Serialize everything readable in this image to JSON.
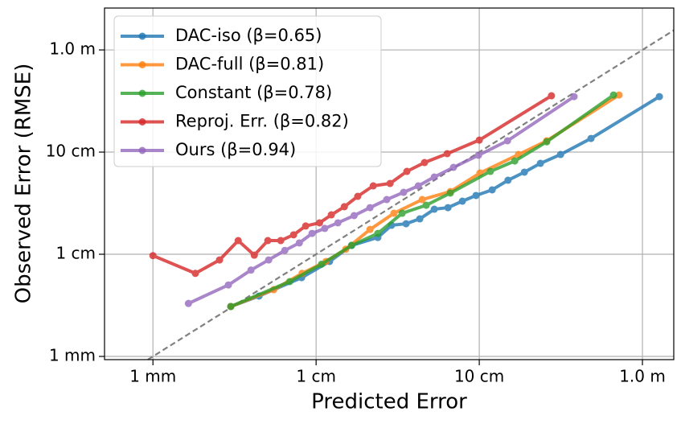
{
  "chart_data": {
    "type": "line",
    "xlabel": "Predicted Error",
    "ylabel": "Observed Error (RMSE)",
    "xscale": "log",
    "yscale": "log",
    "grid": true,
    "legend": "upper left",
    "xlim": [
      0.000505,
      1.556
    ],
    "ylim": [
      0.00093,
      2.57
    ],
    "xticks": [
      {
        "value": 0.001,
        "label": "1 mm"
      },
      {
        "value": 0.01,
        "label": "1 cm"
      },
      {
        "value": 0.1,
        "label": "10 cm"
      },
      {
        "value": 1,
        "label": "1.0 m"
      }
    ],
    "yticks": [
      {
        "value": 0.001,
        "label": "1 mm"
      },
      {
        "value": 0.01,
        "label": "1 cm"
      },
      {
        "value": 0.1,
        "label": "10 cm"
      },
      {
        "value": 1,
        "label": "1.0 m"
      }
    ],
    "series": [
      {
        "name": "DAC-iso (β=0.65)",
        "color": "#1f77b4",
        "x": [
          0.003,
          0.00447,
          0.00815,
          0.0121,
          0.0165,
          0.0239,
          0.029,
          0.0356,
          0.0432,
          0.053,
          0.0643,
          0.0788,
          0.0955,
          0.12,
          0.15,
          0.189,
          0.237,
          0.315,
          0.484,
          1.27
        ],
        "values": [
          0.00308,
          0.0039,
          0.0059,
          0.0085,
          0.0122,
          0.0146,
          0.0192,
          0.0199,
          0.0222,
          0.0276,
          0.0286,
          0.0331,
          0.0376,
          0.0427,
          0.053,
          0.0636,
          0.0776,
          0.0947,
          0.136,
          0.349
        ]
      },
      {
        "name": "DAC-full (β=0.81)",
        "color": "#ff7f0e",
        "x": [
          0.003,
          0.0055,
          0.0082,
          0.0115,
          0.0152,
          0.0214,
          0.03,
          0.0447,
          0.0665,
          0.101,
          0.174,
          0.259,
          0.719
        ],
        "values": [
          0.00308,
          0.0045,
          0.0065,
          0.0085,
          0.0112,
          0.0175,
          0.0252,
          0.0343,
          0.0411,
          0.0624,
          0.0947,
          0.129,
          0.362
        ]
      },
      {
        "name": "Constant (β=0.78)",
        "color": "#2ca02c",
        "x": [
          0.003,
          0.00688,
          0.0108,
          0.0165,
          0.0239,
          0.0337,
          0.0473,
          0.0665,
          0.117,
          0.165,
          0.259,
          0.665
        ],
        "values": [
          0.00308,
          0.0054,
          0.008,
          0.0122,
          0.016,
          0.0252,
          0.0302,
          0.0397,
          0.0647,
          0.0818,
          0.126,
          0.362
        ]
      },
      {
        "name": "Reproj. Err. (β=0.82)",
        "color": "#d62728",
        "x": [
          0.001,
          0.00182,
          0.00256,
          0.00333,
          0.00418,
          0.00506,
          0.00607,
          0.00728,
          0.00863,
          0.0105,
          0.0124,
          0.0149,
          0.018,
          0.0224,
          0.0284,
          0.036,
          0.0462,
          0.0636,
          0.1,
          0.277
        ],
        "values": [
          0.0097,
          0.0065,
          0.0088,
          0.0136,
          0.0098,
          0.0136,
          0.0136,
          0.0155,
          0.0189,
          0.0203,
          0.0243,
          0.0292,
          0.0369,
          0.0467,
          0.0493,
          0.0647,
          0.079,
          0.0965,
          0.131,
          0.356
        ]
      },
      {
        "name": "Ours (β=0.94)",
        "color": "#9467bd",
        "x": [
          0.00165,
          0.0029,
          0.00399,
          0.00512,
          0.00643,
          0.00789,
          0.00945,
          0.0113,
          0.0136,
          0.0171,
          0.0214,
          0.0271,
          0.0344,
          0.0423,
          0.053,
          0.0695,
          0.0989,
          0.149,
          0.381
        ],
        "values": [
          0.0033,
          0.005,
          0.007,
          0.0088,
          0.0109,
          0.0129,
          0.016,
          0.0179,
          0.0203,
          0.0239,
          0.0286,
          0.0343,
          0.0404,
          0.0467,
          0.057,
          0.0709,
          0.0931,
          0.129,
          0.349
        ]
      }
    ]
  }
}
